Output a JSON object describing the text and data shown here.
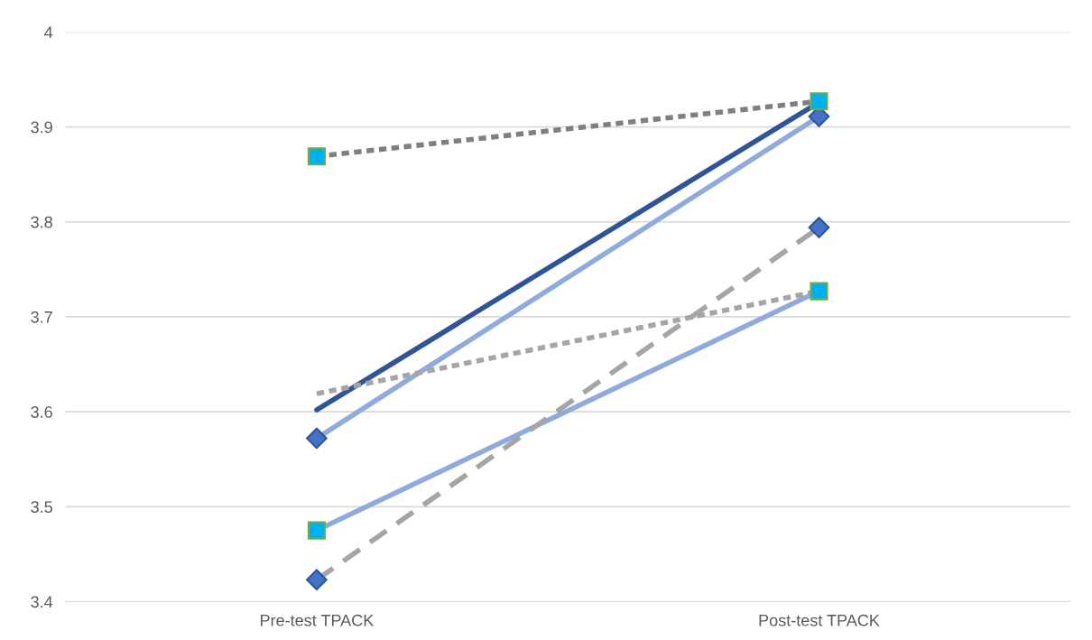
{
  "chart_data": {
    "type": "line",
    "categories": [
      "Pre-test TPACK",
      "Post-test TPACK"
    ],
    "series": [
      {
        "color": "#2f5597",
        "values": [
          3.602,
          3.926
        ],
        "line_style": "solid",
        "marker": "none"
      },
      {
        "color": "#8faadc",
        "values": [
          3.572,
          3.911
        ],
        "line_style": "solid",
        "marker": "diamond"
      },
      {
        "color": "#8faadc",
        "values": [
          3.475,
          3.727
        ],
        "line_style": "solid",
        "marker": "square"
      },
      {
        "color": "#7f7f7f",
        "values": [
          3.869,
          3.927
        ],
        "line_style": "dotted",
        "marker": "square"
      },
      {
        "color": "#a5a5a5",
        "values": [
          3.619,
          3.727
        ],
        "line_style": "dotted",
        "marker": "none"
      },
      {
        "color": "#a5a5a5",
        "values": [
          3.423,
          3.794
        ],
        "line_style": "dashed",
        "marker": "diamond"
      }
    ],
    "ylim": [
      3.4,
      4.0
    ],
    "yticks": [
      3.4,
      3.5,
      3.6,
      3.7,
      3.8,
      3.9,
      4
    ],
    "grid": "y"
  }
}
